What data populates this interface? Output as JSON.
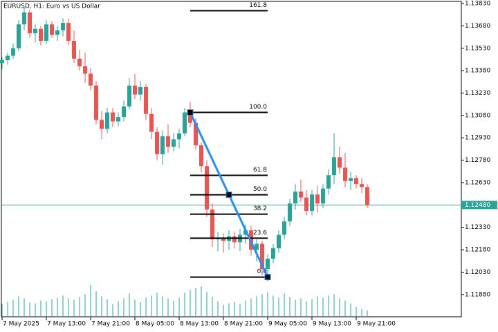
{
  "chart_data": {
    "type": "candlestick",
    "title": "EURUSD, H1:  Euro vs US Dollar",
    "categories": [
      "7 May 2025",
      null,
      null,
      null,
      null,
      null,
      null,
      null,
      "7 May 13:00",
      null,
      null,
      null,
      null,
      null,
      null,
      null,
      "7 May 21:00",
      null,
      null,
      null,
      null,
      null,
      null,
      null,
      "8 May 05:00",
      null,
      null,
      null,
      null,
      null,
      null,
      null,
      "8 May 13:00",
      null,
      null,
      null,
      null,
      null,
      null,
      null,
      "8 May 21:00",
      null,
      null,
      null,
      null,
      null,
      null,
      null,
      "9 May 05:00",
      null,
      null,
      null,
      null,
      null,
      null,
      null,
      "9 May 13:00",
      null,
      null,
      null,
      null,
      null,
      null,
      null,
      "9 May 21:00",
      null,
      null
    ],
    "ohlc": [
      [
        1.1343,
        1.1347,
        1.1339,
        1.1345
      ],
      [
        1.1345,
        1.135,
        1.1342,
        1.1348
      ],
      [
        1.1348,
        1.1356,
        1.1346,
        1.1353
      ],
      [
        1.1353,
        1.1372,
        1.1351,
        1.1369
      ],
      [
        1.1369,
        1.1381,
        1.1365,
        1.1377
      ],
      [
        1.1377,
        1.1379,
        1.136,
        1.1363
      ],
      [
        1.1363,
        1.1369,
        1.1357,
        1.1366
      ],
      [
        1.1366,
        1.1368,
        1.1355,
        1.1358
      ],
      [
        1.1358,
        1.1372,
        1.1356,
        1.1369
      ],
      [
        1.1369,
        1.1371,
        1.136,
        1.1362
      ],
      [
        1.1362,
        1.1368,
        1.1358,
        1.1365
      ],
      [
        1.1365,
        1.1373,
        1.1361,
        1.137
      ],
      [
        1.137,
        1.1373,
        1.1355,
        1.1358
      ],
      [
        1.1358,
        1.1365,
        1.1343,
        1.1346
      ],
      [
        1.1346,
        1.1352,
        1.1338,
        1.1341
      ],
      [
        1.1341,
        1.135,
        1.133,
        1.1336
      ],
      [
        1.1336,
        1.134,
        1.1325,
        1.1328
      ],
      [
        1.1328,
        1.1331,
        1.1302,
        1.1305
      ],
      [
        1.1305,
        1.1311,
        1.1292,
        1.1299
      ],
      [
        1.1299,
        1.1313,
        1.1296,
        1.131
      ],
      [
        1.131,
        1.1313,
        1.13,
        1.1304
      ],
      [
        1.1304,
        1.131,
        1.1301,
        1.1307
      ],
      [
        1.1307,
        1.1318,
        1.1304,
        1.1314
      ],
      [
        1.1314,
        1.1333,
        1.1312,
        1.1328
      ],
      [
        1.1328,
        1.1336,
        1.1319,
        1.1322
      ],
      [
        1.1322,
        1.1331,
        1.1318,
        1.1327
      ],
      [
        1.1327,
        1.1329,
        1.1305,
        1.1309
      ],
      [
        1.1309,
        1.1313,
        1.1292,
        1.1297
      ],
      [
        1.1297,
        1.13,
        1.1278,
        1.1282
      ],
      [
        1.1282,
        1.1298,
        1.1275,
        1.1294
      ],
      [
        1.1294,
        1.1302,
        1.1283,
        1.1287
      ],
      [
        1.1287,
        1.1296,
        1.1284,
        1.1292
      ],
      [
        1.1292,
        1.1299,
        1.1286,
        1.1296
      ],
      [
        1.1296,
        1.1313,
        1.1294,
        1.131
      ],
      [
        1.131,
        1.1317,
        1.13,
        1.1303
      ],
      [
        1.1303,
        1.1306,
        1.1285,
        1.1288
      ],
      [
        1.1288,
        1.129,
        1.127,
        1.1274
      ],
      [
        1.1274,
        1.1278,
        1.124,
        1.1245
      ],
      [
        1.1245,
        1.1249,
        1.122,
        1.1225
      ],
      [
        1.1225,
        1.123,
        1.1217,
        1.1226
      ],
      [
        1.1226,
        1.1229,
        1.1216,
        1.1224
      ],
      [
        1.1224,
        1.1231,
        1.1218,
        1.1227
      ],
      [
        1.1227,
        1.123,
        1.1219,
        1.1223
      ],
      [
        1.1223,
        1.1232,
        1.1217,
        1.1228
      ],
      [
        1.1228,
        1.1235,
        1.1222,
        1.1231
      ],
      [
        1.1231,
        1.1234,
        1.1214,
        1.1218
      ],
      [
        1.1218,
        1.1225,
        1.121,
        1.1222
      ],
      [
        1.1222,
        1.1224,
        1.1201,
        1.1205
      ],
      [
        1.1205,
        1.1215,
        1.1197,
        1.1212
      ],
      [
        1.1212,
        1.1222,
        1.1209,
        1.1219
      ],
      [
        1.1219,
        1.1231,
        1.1216,
        1.1228
      ],
      [
        1.1228,
        1.124,
        1.1225,
        1.1237
      ],
      [
        1.1237,
        1.1252,
        1.1234,
        1.1249
      ],
      [
        1.1249,
        1.1262,
        1.1245,
        1.1257
      ],
      [
        1.1257,
        1.1265,
        1.125,
        1.1253
      ],
      [
        1.1253,
        1.1258,
        1.1241,
        1.1244
      ],
      [
        1.1244,
        1.1258,
        1.1241,
        1.1255
      ],
      [
        1.1255,
        1.1261,
        1.1243,
        1.1249
      ],
      [
        1.1249,
        1.1262,
        1.1246,
        1.1259
      ],
      [
        1.1259,
        1.1272,
        1.1255,
        1.1268
      ],
      [
        1.1268,
        1.1296,
        1.1262,
        1.128
      ],
      [
        1.128,
        1.1287,
        1.1269,
        1.1273
      ],
      [
        1.1273,
        1.1283,
        1.126,
        1.1264
      ],
      [
        1.1264,
        1.127,
        1.1258,
        1.1266
      ],
      [
        1.1266,
        1.1268,
        1.1259,
        1.1262
      ],
      [
        1.1262,
        1.1266,
        1.1256,
        1.126
      ],
      [
        1.126,
        1.1262,
        1.1246,
        1.1248
      ]
    ],
    "volumes": [
      1800,
      2100,
      2400,
      2900,
      2600,
      2000,
      1900,
      2300,
      2200,
      2500,
      2700,
      3000,
      2600,
      2400,
      2800,
      3200,
      4500,
      3600,
      2900,
      2500,
      1800,
      2200,
      2600,
      3300,
      2400,
      2100,
      2700,
      3000,
      3400,
      2900,
      2600,
      2300,
      2700,
      3400,
      3800,
      4100,
      4300,
      3500,
      2800,
      2200,
      1700,
      1900,
      2100,
      1800,
      2300,
      2600,
      2900,
      3200,
      3500,
      3000,
      2700,
      3300,
      2800,
      2400,
      2600,
      2200,
      2500,
      2900,
      2700,
      3000,
      3200,
      2600,
      2300,
      1900,
      1400,
      1100,
      900
    ],
    "up_color": "#26a69a",
    "down_color": "#ef5350",
    "volume_color": "#26a69a",
    "ylim": [
      1.11731,
      1.13844
    ],
    "yticks": [
      {
        "value": 1.1383,
        "label": "1.13830"
      },
      {
        "value": 1.1368,
        "label": "1.13680"
      },
      {
        "value": 1.1353,
        "label": "1.13530"
      },
      {
        "value": 1.1338,
        "label": "1.13380"
      },
      {
        "value": 1.1323,
        "label": "1.13230"
      },
      {
        "value": 1.1308,
        "label": "1.13080"
      },
      {
        "value": 1.1293,
        "label": "1.12930"
      },
      {
        "value": 1.1278,
        "label": "1.12780"
      },
      {
        "value": 1.1263,
        "label": "1.12630"
      },
      {
        "value": 1.1233,
        "label": "1.12330"
      },
      {
        "value": 1.1218,
        "label": "1.12180"
      },
      {
        "value": 1.1203,
        "label": "1.12030"
      },
      {
        "value": 1.1188,
        "label": "1.11880"
      }
    ],
    "current_price": {
      "value": 1.1248,
      "label": "1.12480"
    },
    "fib": {
      "start": {
        "index": 34,
        "price": 1.131
      },
      "end": {
        "index": 48,
        "price": 1.11997
      },
      "color": "#1e90ff",
      "levels": [
        {
          "value": 161.8,
          "label": "161.8"
        },
        {
          "value": 100,
          "label": "100.0"
        },
        {
          "value": 61.8,
          "label": "61.8"
        },
        {
          "value": 50,
          "label": "50.0"
        },
        {
          "value": 38.2,
          "label": "38.2"
        },
        {
          "value": 23.6,
          "label": "23.6"
        },
        {
          "value": 0,
          "label": "0.0"
        }
      ]
    }
  }
}
